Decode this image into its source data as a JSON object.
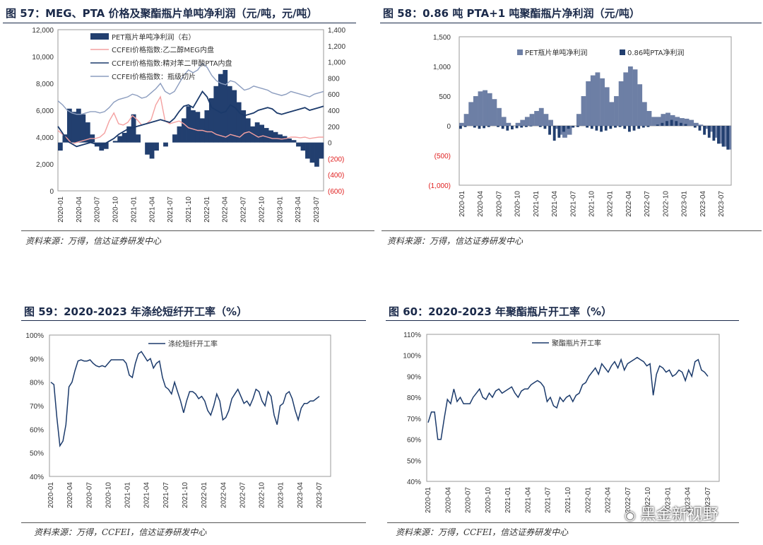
{
  "figures": [
    {
      "title": "图 57：MEG、PTA 价格及聚酯瓶片单吨净利润（元/吨，元/吨）",
      "source": "资料来源：万得，信达证券研发中心"
    },
    {
      "title": "图 58：0.86 吨 PTA+1 吨聚酯瓶片净利润（元/吨）",
      "source": "资料来源：万得，信达证券研发中心"
    },
    {
      "title": "图 59：2020-2023 年涤纶短纤开工率（%）",
      "source": "资料来源：万得，CCFEI，信达证券研发中心"
    },
    {
      "title": "图 60：2020-2023 年聚酯瓶片开工率（%）",
      "source": "资料来源：万得，CCFEI，信达证券研发中心"
    }
  ],
  "watermark": "黑金新视野",
  "colors": {
    "navy": "#1b3a6b",
    "pink": "#f4a0a0",
    "steel": "#8c9dbf",
    "bar_blue": "#223f6f",
    "bar_steel": "#6d7fa5",
    "negative_tick": "#e02020"
  },
  "chart_data": [
    {
      "type": "line",
      "title": "",
      "x_ticks": [
        "2020-01",
        "2020-04",
        "2020-07",
        "2020-10",
        "2021-01",
        "2021-04",
        "2021-07",
        "2021-10",
        "2022-01",
        "2022-04",
        "2022-07",
        "2022-10",
        "2023-01",
        "2023-04",
        "2023-07"
      ],
      "y_left_ticks": [
        "0",
        "2,000",
        "4,000",
        "6,000",
        "8,000",
        "10,000",
        "12,000"
      ],
      "y_left_lim": [
        0,
        12000
      ],
      "y_right_ticks": [
        "(600)",
        "(400)",
        "(200)",
        "0",
        "200",
        "400",
        "600",
        "800",
        "1,000",
        "1,200",
        "1,400"
      ],
      "y_right_lim": [
        -600,
        1400
      ],
      "legend": [
        "PET瓶片单吨净利润（右）",
        "CCFEI价格指数:乙二醇MEG内盘",
        "CCFEI价格指数:精对苯二甲酸PTA内盘",
        "CCFEI价格指数：瓶级切片"
      ],
      "series": [
        {
          "name": "PET瓶片单吨净利润（右）",
          "axis": "right",
          "kind": "bar",
          "values": [
            -100,
            100,
            420,
            380,
            420,
            350,
            250,
            100,
            -50,
            -100,
            -80,
            0,
            20,
            80,
            120,
            200,
            350,
            100,
            0,
            -150,
            -200,
            -100,
            0,
            -50,
            0,
            100,
            200,
            300,
            450,
            400,
            380,
            300,
            400,
            550,
            700,
            850,
            900,
            700,
            650,
            500,
            400,
            300,
            200,
            250,
            220,
            180,
            150,
            130,
            100,
            80,
            50,
            30,
            -50,
            -100,
            -200,
            -250,
            -300,
            -200
          ]
        },
        {
          "name": "CCFEI价格指数:乙二醇MEG内盘",
          "axis": "left",
          "kind": "line",
          "values": [
            4500,
            4200,
            3900,
            3500,
            3600,
            3700,
            3800,
            3900,
            3900,
            4000,
            4300,
            5200,
            5800,
            5000,
            4900,
            5100,
            5600,
            5300,
            4900,
            5000,
            5300,
            6400,
            7000,
            5200,
            5000,
            5100,
            5200,
            5000,
            4700,
            4600,
            4500,
            4500,
            4400,
            4400,
            4200,
            4100,
            4000,
            4200,
            4100,
            4000,
            4300,
            4400,
            4200,
            4000,
            4100,
            4000,
            3900,
            3900,
            3850,
            3900,
            4000,
            4000,
            3950,
            4000,
            3900,
            3950,
            4000,
            4000
          ]
        },
        {
          "name": "CCFEI价格指数:精对苯二甲酸PTA内盘",
          "axis": "left",
          "kind": "line",
          "values": [
            4800,
            4300,
            3700,
            3500,
            3300,
            3400,
            3500,
            3600,
            3500,
            3400,
            3500,
            3700,
            3900,
            4200,
            4400,
            4600,
            4700,
            4800,
            4900,
            5000,
            5100,
            5200,
            5300,
            5200,
            5100,
            5400,
            5900,
            6300,
            6400,
            6200,
            6800,
            7400,
            7000,
            6200,
            6000,
            5800,
            5900,
            6400,
            6200,
            5800,
            5600,
            5700,
            5800,
            6000,
            6100,
            6200,
            6100,
            5800,
            5700,
            5800,
            5900,
            6000,
            6100,
            6200,
            6000,
            6100,
            6200,
            6300
          ]
        },
        {
          "name": "CCFEI价格指数：瓶级切片",
          "axis": "left",
          "kind": "line",
          "values": [
            6700,
            6400,
            6000,
            5800,
            5700,
            5700,
            5800,
            5900,
            5900,
            5800,
            5900,
            6200,
            6600,
            6800,
            6900,
            7000,
            7200,
            7100,
            6900,
            7000,
            7300,
            7600,
            8000,
            7400,
            7200,
            7400,
            8000,
            8600,
            9000,
            8800,
            9000,
            9500,
            9200,
            8600,
            8200,
            8000,
            7900,
            8200,
            8100,
            7800,
            7500,
            7600,
            7800,
            7700,
            7600,
            7500,
            7300,
            7200,
            7100,
            7200,
            7400,
            7300,
            7200,
            7100,
            7000,
            7200,
            7300,
            7400
          ]
        }
      ]
    },
    {
      "type": "bar",
      "title": "",
      "x_ticks": [
        "2020-01",
        "2020-04",
        "2020-07",
        "2020-10",
        "2021-01",
        "2021-04",
        "2021-07",
        "2021-10",
        "2022-01",
        "2022-04",
        "2022-07",
        "2022-10",
        "2023-01",
        "2023-04",
        "2023-07"
      ],
      "y_ticks": [
        "(1,000)",
        "(500)",
        "0",
        "500",
        "1,000",
        "1,500"
      ],
      "ylim": [
        -1000,
        1500
      ],
      "legend": [
        "PET瓶片单吨净利润",
        "0.86吨PTA净利润"
      ],
      "series": [
        {
          "name": "PET瓶片单吨净利润",
          "values": [
            50,
            200,
            400,
            500,
            580,
            600,
            550,
            450,
            300,
            150,
            50,
            0,
            50,
            100,
            150,
            200,
            250,
            300,
            200,
            100,
            -50,
            -150,
            -200,
            -150,
            0,
            200,
            500,
            750,
            850,
            900,
            800,
            650,
            400,
            500,
            750,
            900,
            1000,
            950,
            700,
            400,
            250,
            150,
            150,
            200,
            220,
            180,
            150,
            130,
            120,
            100,
            50,
            20,
            -50,
            -100,
            -200,
            -300,
            -350,
            -400
          ]
        },
        {
          "name": "0.86吨PTA净利润",
          "values": [
            -50,
            -20,
            0,
            -30,
            -50,
            -40,
            -20,
            0,
            -20,
            -50,
            -80,
            -60,
            -40,
            -30,
            -20,
            -10,
            0,
            -20,
            -50,
            -150,
            -250,
            -200,
            -100,
            -50,
            -30,
            -20,
            0,
            -30,
            -50,
            -80,
            -100,
            -80,
            -50,
            -30,
            -20,
            -50,
            -100,
            -80,
            -50,
            -30,
            -20,
            0,
            20,
            50,
            80,
            100,
            80,
            50,
            30,
            0,
            -30,
            -80,
            -150,
            -200,
            -250,
            -300,
            -350,
            -400
          ]
        }
      ]
    },
    {
      "type": "line",
      "title": "",
      "x_ticks": [
        "2020-01",
        "2020-04",
        "2020-07",
        "2020-10",
        "2021-01",
        "2021-04",
        "2021-07",
        "2021-10",
        "2022-01",
        "2022-04",
        "2022-07",
        "2022-10",
        "2023-01",
        "2023-04",
        "2023-07"
      ],
      "y_ticks": [
        "40%",
        "50%",
        "60%",
        "70%",
        "80%",
        "90%",
        "100%"
      ],
      "ylim": [
        40,
        100
      ],
      "legend": [
        "涤纶短纤开工率"
      ],
      "series": [
        {
          "name": "涤纶短纤开工率",
          "values": [
            80,
            79,
            65,
            53,
            55,
            62,
            78,
            80,
            85,
            89,
            89.5,
            89,
            89,
            89.5,
            88,
            87,
            86.5,
            87,
            86.5,
            88,
            89.5,
            89.5,
            89.5,
            89.5,
            89.5,
            88,
            83,
            82,
            88,
            92,
            93,
            91,
            89,
            90,
            86,
            88,
            89,
            82,
            78,
            77,
            75,
            80,
            76,
            72,
            67,
            72,
            76,
            76,
            75,
            73,
            74,
            72,
            68,
            66,
            70,
            75,
            72,
            64,
            65,
            68,
            73,
            75,
            77,
            74,
            71,
            72,
            70,
            73,
            77,
            76,
            72,
            70,
            76,
            74,
            66,
            62,
            70,
            71,
            75,
            76,
            73,
            68,
            64,
            69,
            71,
            71,
            72,
            72,
            73,
            74
          ]
        }
      ]
    },
    {
      "type": "line",
      "title": "",
      "x_ticks": [
        "2020-01",
        "2020-04",
        "2020-07",
        "2020-10",
        "2021-01",
        "2021-04",
        "2021-07",
        "2021-10",
        "2022-01",
        "2022-04",
        "2022-07",
        "2022-10",
        "2023-01",
        "2023-04",
        "2023-07"
      ],
      "y_ticks": [
        "40%",
        "50%",
        "60%",
        "70%",
        "80%",
        "90%",
        "100%",
        "110%"
      ],
      "ylim": [
        40,
        110
      ],
      "legend": [
        "聚酯瓶片开工率"
      ],
      "series": [
        {
          "name": "聚酯瓶片开工率",
          "values": [
            68,
            73,
            73,
            60,
            60,
            70,
            79,
            77,
            84,
            78,
            80,
            77,
            77,
            77,
            80,
            82,
            84,
            80,
            79,
            82,
            80,
            83,
            84,
            82,
            83,
            84,
            85,
            82,
            80,
            83,
            84,
            84,
            86,
            87,
            88,
            87,
            85,
            78,
            80,
            76,
            75,
            80,
            78,
            80,
            81,
            78,
            81,
            82,
            86,
            87,
            90,
            92,
            94,
            91,
            96,
            94,
            92,
            95,
            97,
            94,
            98,
            93,
            96,
            97,
            98,
            99,
            98,
            97,
            95,
            96,
            81,
            91,
            95,
            94,
            92,
            93,
            90,
            91,
            93,
            92,
            88,
            93,
            90,
            97,
            98,
            93,
            92,
            90
          ]
        }
      ]
    }
  ]
}
